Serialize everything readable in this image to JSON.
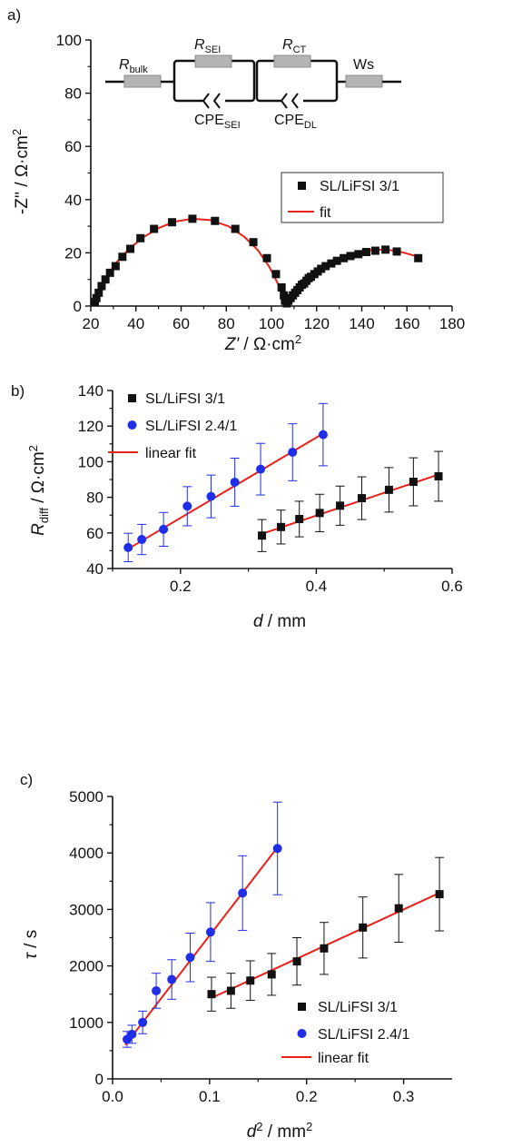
{
  "chart_data": [
    {
      "type": "scatter",
      "panel_label": "a)",
      "xlabel_italic": "Z'",
      "xlabel_rest": " / Ω·cm",
      "xlabel_sup": "2",
      "ylabel": "-Z'' / Ω·cm",
      "ylabel_sup": "2",
      "xlim": [
        20,
        180
      ],
      "ylim": [
        0,
        100
      ],
      "xticks": [
        20,
        40,
        60,
        80,
        100,
        120,
        140,
        160,
        180
      ],
      "yticks": [
        0,
        20,
        40,
        60,
        80,
        100
      ],
      "legend": [
        "SL/LiFSI 3/1",
        "fit"
      ],
      "circuit": {
        "r_bulk_main": "R",
        "r_bulk_sub": "bulk",
        "r_sei_main": "R",
        "r_sei_sub": "SEI",
        "r_ct_main": "R",
        "r_ct_sub": "CT",
        "ws": "Ws",
        "cpe_sei_main": "CPE",
        "cpe_sei_sub": "SEI",
        "cpe_dl_main": "CPE",
        "cpe_dl_sub": "DL"
      },
      "series": [
        {
          "name": "SL/LiFSI 3/1",
          "marker": "square",
          "color": "#111111",
          "x": [
            21.8,
            22.5,
            23.5,
            24.8,
            26.5,
            28.5,
            31,
            34,
            37.5,
            42,
            48,
            56,
            65,
            75,
            84,
            92,
            98,
            102,
            104.5,
            105.5,
            106,
            106.8,
            107.5,
            108.5,
            109.5,
            110.5,
            111.5,
            112.5,
            113.5,
            114.5,
            115.5,
            116.5,
            117.5,
            119,
            120.5,
            122,
            124,
            126.5,
            129,
            132,
            135,
            138.5,
            142,
            146,
            150.5,
            155.5,
            165
          ],
          "y": [
            1.5,
            3,
            5,
            7.5,
            10,
            12.5,
            15,
            18.5,
            21.5,
            25.5,
            29,
            31.5,
            32.8,
            32,
            29,
            24,
            18,
            12,
            7,
            4,
            2,
            1,
            2,
            3,
            4,
            5,
            6,
            7,
            8,
            8.5,
            9.5,
            10.5,
            11,
            12,
            13,
            14,
            15,
            16,
            17,
            18,
            18.8,
            19.5,
            20.3,
            20.8,
            21.2,
            20.5,
            18
          ]
        },
        {
          "name": "fit",
          "line": true,
          "color": "#e8211b",
          "x": [
            21.5,
            23,
            25,
            28,
            32,
            37,
            43,
            50,
            57,
            65,
            73,
            81,
            88,
            94,
            99,
            102.5,
            104.5,
            105.8,
            106.6,
            108,
            110,
            113,
            117,
            122,
            128,
            134,
            140,
            146,
            152,
            158,
            163,
            166
          ],
          "y": [
            0.2,
            4.3,
            8.3,
            12.5,
            17,
            21.5,
            25.7,
            29.3,
            31.7,
            32.8,
            32.3,
            30,
            26,
            21,
            14.8,
            9,
            5,
            2.2,
            0.8,
            2.6,
            4.4,
            7,
            10.2,
            13.7,
            17,
            19.3,
            20.6,
            21.2,
            21.1,
            20.2,
            19,
            18
          ]
        }
      ]
    },
    {
      "type": "scatter",
      "panel_label": "b)",
      "xlabel_italic": "d",
      "xlabel_rest": " / mm",
      "ylabel_italic": "R",
      "ylabel_sub": "diff",
      "ylabel_rest": " / Ω·cm",
      "ylabel_sup": "2",
      "xlim": [
        0.1,
        0.6
      ],
      "ylim": [
        40,
        140
      ],
      "xticks": [
        0.2,
        0.4,
        0.6
      ],
      "yticks": [
        40,
        60,
        80,
        100,
        120,
        140
      ],
      "legend": [
        "SL/LiFSI 3/1",
        "SL/LiFSI 2.4/1",
        "linear fit"
      ],
      "series": [
        {
          "name": "SL/LiFSI 3/1",
          "marker": "square",
          "color": "#111111",
          "x": [
            0.32,
            0.348,
            0.375,
            0.405,
            0.435,
            0.467,
            0.507,
            0.543,
            0.58
          ],
          "y": [
            58.5,
            63.3,
            67.8,
            71.2,
            75.3,
            79.5,
            84.2,
            88.7,
            91.8
          ],
          "err": [
            9,
            9.5,
            10,
            10.5,
            11,
            12,
            12.5,
            13.5,
            14
          ]
        },
        {
          "name": "SL/LiFSI 2.4/1",
          "marker": "circle",
          "color": "#1f2ee8",
          "x": [
            0.123,
            0.143,
            0.175,
            0.21,
            0.245,
            0.28,
            0.318,
            0.365,
            0.41
          ],
          "y": [
            51.8,
            56.3,
            62,
            75,
            80.5,
            88.5,
            95.8,
            105.3,
            115.2
          ],
          "err": [
            8,
            8.5,
            9.5,
            11,
            12,
            13.5,
            14.5,
            16,
            17.5
          ]
        },
        {
          "name": "linear fit",
          "line": true,
          "color": "#e8211b",
          "segments": [
            {
              "x": [
                0.32,
                0.582
              ],
              "y": [
                59.5,
                93
              ]
            },
            {
              "x": [
                0.122,
                0.41
              ],
              "y": [
                50.8,
                115.8
              ]
            }
          ]
        }
      ]
    },
    {
      "type": "scatter",
      "panel_label": "c)",
      "xlabel_italic": "d",
      "xlabel_sup": "2",
      "xlabel_rest": " / mm",
      "xlabel_sup2": "2",
      "ylabel_italic": "τ",
      "ylabel_rest": " / s",
      "xlim": [
        0.0,
        0.35
      ],
      "ylim": [
        0,
        5000
      ],
      "xticks": [
        0.0,
        0.1,
        0.2,
        0.3
      ],
      "yticks": [
        0,
        1000,
        2000,
        3000,
        4000,
        5000
      ],
      "legend": [
        "SL/LiFSI 3/1",
        "SL/LiFSI 2.4/1",
        "linear fit"
      ],
      "series": [
        {
          "name": "SL/LiFSI 3/1",
          "marker": "square",
          "color": "#111111",
          "x": [
            0.102,
            0.122,
            0.142,
            0.164,
            0.19,
            0.218,
            0.258,
            0.295,
            0.337
          ],
          "y": [
            1500,
            1560,
            1740,
            1850,
            2080,
            2310,
            2680,
            3020,
            3270
          ],
          "err": [
            300,
            310,
            350,
            370,
            420,
            460,
            540,
            600,
            650
          ]
        },
        {
          "name": "SL/LiFSI 2.4/1",
          "marker": "circle",
          "color": "#1f2ee8",
          "x": [
            0.015,
            0.02,
            0.031,
            0.045,
            0.061,
            0.08,
            0.101,
            0.134,
            0.17
          ],
          "y": [
            700,
            790,
            1000,
            1560,
            1760,
            2150,
            2600,
            3290,
            4080
          ],
          "err": [
            140,
            160,
            200,
            310,
            350,
            430,
            520,
            660,
            820
          ]
        },
        {
          "name": "linear fit",
          "line": true,
          "color": "#e8211b",
          "segments": [
            {
              "x": [
                0.103,
                0.338
              ],
              "y": [
                1440,
                3300
              ]
            },
            {
              "x": [
                0.013,
                0.17
              ],
              "y": [
                600,
                4100
              ]
            }
          ]
        }
      ]
    }
  ]
}
